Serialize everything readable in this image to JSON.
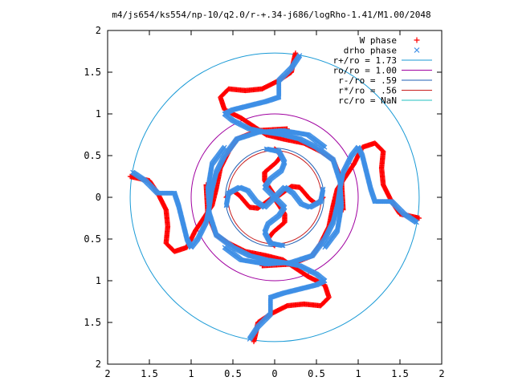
{
  "chart_data": {
    "type": "scatter",
    "title": "m4/js654/ks554/np-10/q2.0/r-+.34-j686/logRho-1.41/M1.00/2048",
    "xlabel": "",
    "ylabel": "",
    "xlim": [
      -2,
      2
    ],
    "ylim": [
      -2,
      2
    ],
    "x_ticks": [
      -2,
      -1.5,
      -1,
      -0.5,
      0,
      0.5,
      1,
      1.5,
      2
    ],
    "y_ticks": [
      -2,
      -1.5,
      -1,
      -0.5,
      0,
      0.5,
      1,
      1.5,
      2
    ],
    "x_tick_labels": [
      "2",
      "1.5",
      "1",
      "0.5",
      "0",
      "0.5",
      "1",
      "1.5",
      "2"
    ],
    "y_tick_labels": [
      "2",
      "1.5",
      "1",
      "0.5",
      "0",
      "0.5",
      "1",
      "1.5",
      "2"
    ],
    "grid": false,
    "legend_position": "top-right",
    "series": [
      {
        "name": "W phase",
        "kind": "points",
        "marker": "plus",
        "color": "#ff0000",
        "arms": [
          [
            [
              0.05,
              0.02
            ],
            [
              0.2,
              0.13
            ],
            [
              0.3,
              0.12
            ],
            [
              0.42,
              -0.02
            ],
            [
              0.5,
              -0.08
            ],
            [
              0.58,
              0.0
            ]
          ],
          [
            [
              -0.02,
              0.05
            ],
            [
              -0.12,
              0.2
            ],
            [
              -0.12,
              0.3
            ],
            [
              0.02,
              0.42
            ],
            [
              0.08,
              0.5
            ],
            [
              0.0,
              0.58
            ]
          ],
          [
            [
              -0.05,
              -0.02
            ],
            [
              -0.2,
              -0.13
            ],
            [
              -0.3,
              -0.12
            ],
            [
              -0.42,
              0.02
            ],
            [
              -0.5,
              0.08
            ],
            [
              -0.58,
              0.0
            ]
          ],
          [
            [
              0.02,
              -0.05
            ],
            [
              0.12,
              -0.2
            ],
            [
              0.12,
              -0.3
            ],
            [
              -0.02,
              -0.42
            ],
            [
              -0.08,
              -0.5
            ],
            [
              0.0,
              -0.58
            ]
          ],
          [
            [
              0.82,
              -0.15
            ],
            [
              0.8,
              0.2
            ],
            [
              0.7,
              0.45
            ],
            [
              0.55,
              0.55
            ],
            [
              0.35,
              0.65
            ],
            [
              0.1,
              0.7
            ],
            [
              -0.1,
              0.75
            ],
            [
              -0.25,
              0.85
            ],
            [
              -0.4,
              0.95
            ],
            [
              -0.6,
              1.05
            ],
            [
              -0.65,
              1.2
            ],
            [
              -0.55,
              1.3
            ],
            [
              -0.35,
              1.28
            ],
            [
              -0.15,
              1.3
            ],
            [
              0.05,
              1.4
            ],
            [
              0.2,
              1.5
            ],
            [
              0.22,
              1.6
            ],
            [
              0.25,
              1.73
            ]
          ],
          [
            [
              0.15,
              0.82
            ],
            [
              -0.2,
              0.8
            ],
            [
              -0.45,
              0.7
            ],
            [
              -0.55,
              0.55
            ],
            [
              -0.65,
              0.35
            ],
            [
              -0.7,
              0.1
            ],
            [
              -0.75,
              -0.1
            ],
            [
              -0.85,
              -0.25
            ],
            [
              -0.95,
              -0.4
            ],
            [
              -1.05,
              -0.6
            ],
            [
              -1.2,
              -0.65
            ],
            [
              -1.3,
              -0.55
            ],
            [
              -1.28,
              -0.35
            ],
            [
              -1.3,
              -0.15
            ],
            [
              -1.4,
              0.05
            ],
            [
              -1.5,
              0.2
            ],
            [
              -1.6,
              0.22
            ],
            [
              -1.73,
              0.25
            ]
          ],
          [
            [
              -0.82,
              0.15
            ],
            [
              -0.8,
              -0.2
            ],
            [
              -0.7,
              -0.45
            ],
            [
              -0.55,
              -0.55
            ],
            [
              -0.35,
              -0.65
            ],
            [
              -0.1,
              -0.7
            ],
            [
              0.1,
              -0.75
            ],
            [
              0.25,
              -0.85
            ],
            [
              0.4,
              -0.95
            ],
            [
              0.6,
              -1.05
            ],
            [
              0.65,
              -1.2
            ],
            [
              0.55,
              -1.3
            ],
            [
              0.35,
              -1.28
            ],
            [
              0.15,
              -1.3
            ],
            [
              -0.05,
              -1.4
            ],
            [
              -0.2,
              -1.5
            ],
            [
              -0.22,
              -1.6
            ],
            [
              -0.25,
              -1.73
            ]
          ],
          [
            [
              -0.15,
              -0.82
            ],
            [
              0.2,
              -0.8
            ],
            [
              0.45,
              -0.7
            ],
            [
              0.55,
              -0.55
            ],
            [
              0.65,
              -0.35
            ],
            [
              0.7,
              -0.1
            ],
            [
              0.75,
              0.1
            ],
            [
              0.85,
              0.25
            ],
            [
              0.95,
              0.4
            ],
            [
              1.05,
              0.6
            ],
            [
              1.2,
              0.65
            ],
            [
              1.3,
              0.55
            ],
            [
              1.28,
              0.35
            ],
            [
              1.3,
              0.15
            ],
            [
              1.4,
              -0.05
            ],
            [
              1.5,
              -0.2
            ],
            [
              1.6,
              -0.22
            ],
            [
              1.73,
              -0.25
            ]
          ]
        ]
      },
      {
        "name": "drho phase",
        "kind": "points",
        "marker": "cross",
        "color": "#3e8fe6",
        "arms": [
          [
            [
              0.0,
              0.0
            ],
            [
              0.12,
              0.12
            ],
            [
              0.22,
              0.05
            ],
            [
              0.32,
              -0.08
            ],
            [
              0.42,
              -0.12
            ],
            [
              0.55,
              -0.05
            ],
            [
              0.58,
              0.1
            ]
          ],
          [
            [
              0.0,
              0.0
            ],
            [
              -0.12,
              0.12
            ],
            [
              -0.05,
              0.22
            ],
            [
              0.08,
              0.32
            ],
            [
              0.12,
              0.42
            ],
            [
              0.05,
              0.55
            ],
            [
              -0.1,
              0.58
            ]
          ],
          [
            [
              0.0,
              0.0
            ],
            [
              -0.12,
              -0.12
            ],
            [
              -0.22,
              -0.05
            ],
            [
              -0.32,
              0.08
            ],
            [
              -0.42,
              0.12
            ],
            [
              -0.55,
              0.05
            ],
            [
              -0.58,
              -0.1
            ]
          ],
          [
            [
              0.0,
              0.0
            ],
            [
              0.12,
              -0.12
            ],
            [
              0.05,
              -0.22
            ],
            [
              -0.08,
              -0.32
            ],
            [
              -0.12,
              -0.42
            ],
            [
              -0.05,
              -0.55
            ],
            [
              0.1,
              -0.58
            ]
          ],
          [
            [
              0.6,
              -0.6
            ],
            [
              0.75,
              -0.4
            ],
            [
              0.8,
              -0.1
            ],
            [
              0.78,
              0.2
            ],
            [
              0.7,
              0.45
            ],
            [
              0.5,
              0.6
            ],
            [
              0.3,
              0.7
            ],
            [
              0.1,
              0.75
            ],
            [
              -0.1,
              0.78
            ],
            [
              -0.3,
              0.82
            ],
            [
              -0.5,
              0.92
            ],
            [
              -0.6,
              1.0
            ],
            [
              -0.5,
              1.05
            ],
            [
              -0.3,
              1.1
            ],
            [
              -0.1,
              1.15
            ],
            [
              0.05,
              1.2
            ],
            [
              0.05,
              1.4
            ],
            [
              0.2,
              1.55
            ],
            [
              0.3,
              1.7
            ]
          ],
          [
            [
              0.6,
              0.6
            ],
            [
              0.4,
              0.75
            ],
            [
              0.1,
              0.8
            ],
            [
              -0.2,
              0.78
            ],
            [
              -0.45,
              0.7
            ],
            [
              -0.6,
              0.5
            ],
            [
              -0.7,
              0.3
            ],
            [
              -0.75,
              0.1
            ],
            [
              -0.78,
              -0.1
            ],
            [
              -0.82,
              -0.3
            ],
            [
              -0.92,
              -0.5
            ],
            [
              -1.0,
              -0.6
            ],
            [
              -1.05,
              -0.5
            ],
            [
              -1.1,
              -0.3
            ],
            [
              -1.15,
              -0.1
            ],
            [
              -1.2,
              0.05
            ],
            [
              -1.4,
              0.05
            ],
            [
              -1.55,
              0.2
            ],
            [
              -1.7,
              0.3
            ]
          ],
          [
            [
              -0.6,
              0.6
            ],
            [
              -0.75,
              0.4
            ],
            [
              -0.8,
              0.1
            ],
            [
              -0.78,
              -0.2
            ],
            [
              -0.7,
              -0.45
            ],
            [
              -0.5,
              -0.6
            ],
            [
              -0.3,
              -0.7
            ],
            [
              -0.1,
              -0.75
            ],
            [
              0.1,
              -0.78
            ],
            [
              0.3,
              -0.82
            ],
            [
              0.5,
              -0.92
            ],
            [
              0.6,
              -1.0
            ],
            [
              0.5,
              -1.05
            ],
            [
              0.3,
              -1.1
            ],
            [
              0.1,
              -1.15
            ],
            [
              -0.05,
              -1.2
            ],
            [
              -0.05,
              -1.4
            ],
            [
              -0.2,
              -1.55
            ],
            [
              -0.3,
              -1.7
            ]
          ],
          [
            [
              -0.6,
              -0.6
            ],
            [
              -0.4,
              -0.75
            ],
            [
              -0.1,
              -0.8
            ],
            [
              0.2,
              -0.78
            ],
            [
              0.45,
              -0.7
            ],
            [
              0.6,
              -0.5
            ],
            [
              0.7,
              -0.3
            ],
            [
              0.75,
              -0.1
            ],
            [
              0.78,
              0.1
            ],
            [
              0.82,
              0.3
            ],
            [
              0.92,
              0.5
            ],
            [
              1.0,
              0.6
            ],
            [
              1.05,
              0.5
            ],
            [
              1.1,
              0.3
            ],
            [
              1.15,
              0.1
            ],
            [
              1.2,
              -0.05
            ],
            [
              1.4,
              -0.05
            ],
            [
              1.55,
              -0.2
            ],
            [
              1.7,
              -0.3
            ]
          ]
        ]
      },
      {
        "name": "r+/ro = 1.73",
        "kind": "circle",
        "r": 1.73,
        "color": "#1a9ad6"
      },
      {
        "name": "ro/ro = 1.00",
        "kind": "circle",
        "r": 1.0,
        "color": "#a000a0"
      },
      {
        "name": "r-/ro = .59",
        "kind": "circle",
        "r": 0.59,
        "color": "#1f5fb4"
      },
      {
        "name": "r*/ro = .56",
        "kind": "circle",
        "r": 0.56,
        "color": "#c81e1e"
      },
      {
        "name": "rc/ro = NaN",
        "kind": "circle",
        "r": null,
        "color": "#20c0c0"
      }
    ]
  }
}
